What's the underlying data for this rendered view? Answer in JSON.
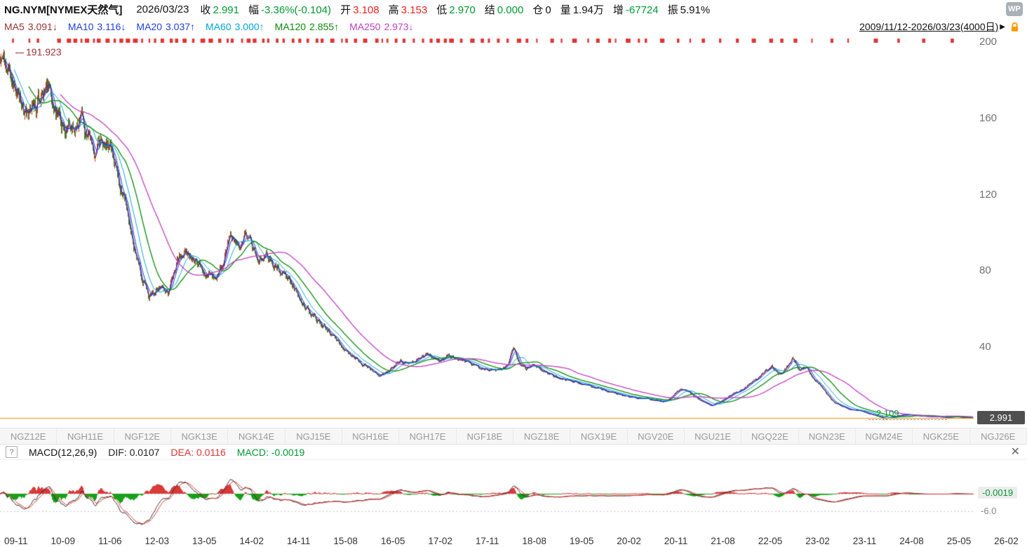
{
  "header": {
    "symbol": "NG.NYM[NYMEX天然气]",
    "date": "2026/03/23",
    "fields": [
      {
        "label": "收",
        "value": "2.991",
        "color": "green"
      },
      {
        "label": "幅",
        "value": "-3.36%(-0.104)",
        "color": "green"
      },
      {
        "label": "开",
        "value": "3.108",
        "color": "red"
      },
      {
        "label": "高",
        "value": "3.153",
        "color": "red"
      },
      {
        "label": "低",
        "value": "2.970",
        "color": "green"
      },
      {
        "label": "结",
        "value": "0.000",
        "color": "green"
      },
      {
        "label": "仓",
        "value": "0",
        "color": "dark"
      },
      {
        "label": "量",
        "value": "1.94万",
        "color": "dark"
      },
      {
        "label": "增",
        "value": "-67724",
        "color": "green"
      },
      {
        "label": "振",
        "value": "5.91%",
        "color": "dark"
      }
    ],
    "logo": "WP"
  },
  "ma_row": {
    "items": [
      {
        "label": "MA5",
        "value": "3.091",
        "arrow": "↓",
        "color": "#993333"
      },
      {
        "label": "MA10",
        "value": "3.116",
        "arrow": "↓",
        "color": "#1f3fd8"
      },
      {
        "label": "MA20",
        "value": "3.037",
        "arrow": "↑",
        "color": "#1f3fd8"
      },
      {
        "label": "MA60",
        "value": "3.000",
        "arrow": "↑",
        "color": "#00a6d6"
      },
      {
        "label": "MA120",
        "value": "2.855",
        "arrow": "↑",
        "color": "#0a8a0a"
      },
      {
        "label": "MA250",
        "value": "2.973",
        "arrow": "↓",
        "color": "#c03fc0"
      }
    ],
    "range": "2009/11/12-2026/03/23(4000日)",
    "arrow": "▶"
  },
  "chart_data": {
    "type": "candlestick",
    "title": "NG.NYM NYMEX天然气 2009/11/12-2026/03/23 (4000日)",
    "y_ticks": [
      200,
      160,
      120,
      80,
      40
    ],
    "y_top": 200,
    "x_ticks": [
      "09-11",
      "10-09",
      "11-06",
      "12-03",
      "13-05",
      "14-02",
      "14-11",
      "15-08",
      "16-05",
      "17-02",
      "17-11",
      "18-08",
      "19-05",
      "20-02",
      "20-11",
      "21-08",
      "22-05",
      "23-02",
      "23-11",
      "24-08",
      "25-05",
      "26-02"
    ],
    "contracts": [
      "NGZ12E",
      "NGH11E",
      "NGF12E",
      "NGK13E",
      "NGK14E",
      "NGJ15E",
      "NGH16E",
      "NGH17E",
      "NGF18E",
      "NGZ18E",
      "NGX19E",
      "NGV20E",
      "NGU21E",
      "NGQ22E",
      "NGN23E",
      "NGM24E",
      "NGK25E",
      "NGJ26E"
    ],
    "high_label": "191.923",
    "low_label": "2.109",
    "low_value": 2.109,
    "low_pos": 0.908,
    "last_price": "2.991",
    "last_value": 2.991,
    "anchors": [
      [
        0.0,
        192
      ],
      [
        0.006,
        188
      ],
      [
        0.013,
        178
      ],
      [
        0.022,
        169
      ],
      [
        0.03,
        163
      ],
      [
        0.04,
        172
      ],
      [
        0.047,
        177
      ],
      [
        0.056,
        168
      ],
      [
        0.065,
        157
      ],
      [
        0.074,
        153
      ],
      [
        0.082,
        161
      ],
      [
        0.09,
        149
      ],
      [
        0.097,
        136
      ],
      [
        0.104,
        151
      ],
      [
        0.114,
        142
      ],
      [
        0.122,
        127
      ],
      [
        0.13,
        113
      ],
      [
        0.137,
        93
      ],
      [
        0.145,
        79
      ],
      [
        0.153,
        67
      ],
      [
        0.163,
        72
      ],
      [
        0.173,
        68
      ],
      [
        0.183,
        87
      ],
      [
        0.19,
        93
      ],
      [
        0.199,
        84
      ],
      [
        0.209,
        80
      ],
      [
        0.22,
        77
      ],
      [
        0.229,
        84
      ],
      [
        0.237,
        99
      ],
      [
        0.245,
        91
      ],
      [
        0.253,
        97
      ],
      [
        0.262,
        89
      ],
      [
        0.274,
        86
      ],
      [
        0.285,
        82
      ],
      [
        0.295,
        75
      ],
      [
        0.306,
        67
      ],
      [
        0.315,
        60
      ],
      [
        0.326,
        54
      ],
      [
        0.336,
        49
      ],
      [
        0.346,
        43
      ],
      [
        0.357,
        36
      ],
      [
        0.367,
        33
      ],
      [
        0.378,
        29.5
      ],
      [
        0.389,
        24.5
      ],
      [
        0.4,
        28
      ],
      [
        0.411,
        34
      ],
      [
        0.421,
        31
      ],
      [
        0.43,
        34
      ],
      [
        0.441,
        36.5
      ],
      [
        0.451,
        34
      ],
      [
        0.462,
        35.5
      ],
      [
        0.478,
        32
      ],
      [
        0.49,
        30
      ],
      [
        0.504,
        28.5
      ],
      [
        0.515,
        27.5
      ],
      [
        0.522,
        31
      ],
      [
        0.527,
        41
      ],
      [
        0.532,
        33
      ],
      [
        0.54,
        29
      ],
      [
        0.548,
        31
      ],
      [
        0.558,
        27
      ],
      [
        0.569,
        25
      ],
      [
        0.584,
        23
      ],
      [
        0.598,
        21
      ],
      [
        0.612,
        18.5
      ],
      [
        0.627,
        16.5
      ],
      [
        0.641,
        15
      ],
      [
        0.656,
        13.5
      ],
      [
        0.67,
        12.5
      ],
      [
        0.684,
        11.5
      ],
      [
        0.694,
        16
      ],
      [
        0.702,
        18.5
      ],
      [
        0.712,
        15
      ],
      [
        0.722,
        11.5
      ],
      [
        0.731,
        9.5
      ],
      [
        0.742,
        12
      ],
      [
        0.753,
        15.5
      ],
      [
        0.764,
        18
      ],
      [
        0.774,
        22
      ],
      [
        0.784,
        26
      ],
      [
        0.793,
        31
      ],
      [
        0.8,
        26
      ],
      [
        0.807,
        29
      ],
      [
        0.814,
        34
      ],
      [
        0.821,
        28
      ],
      [
        0.829,
        30
      ],
      [
        0.836,
        24
      ],
      [
        0.847,
        17
      ],
      [
        0.857,
        11
      ],
      [
        0.872,
        7.5
      ],
      [
        0.886,
        6.2
      ],
      [
        0.895,
        5.0
      ],
      [
        0.903,
        3.6
      ],
      [
        0.91,
        2.5
      ],
      [
        0.918,
        3.7
      ],
      [
        0.93,
        4.7
      ],
      [
        0.945,
        4.1
      ],
      [
        0.958,
        3.7
      ],
      [
        0.972,
        3.3
      ],
      [
        0.985,
        3.5
      ],
      [
        0.995,
        3.05
      ],
      [
        1.0,
        2.991
      ]
    ],
    "ma_windows_days": [
      5,
      10,
      20,
      60,
      120,
      250
    ],
    "colors": {
      "up": "#c9302c",
      "down": "#1f8f1f",
      "ma5": "#993333",
      "ma10": "#1f3fd8",
      "ma20": "#2a32c8",
      "ma60": "#00a6d6",
      "ma120": "#0a8a0a",
      "ma250": "#c03fc0",
      "last_price_line": "#ff8a00",
      "top_marks": "#e23333"
    }
  },
  "macd": {
    "help": "?",
    "title": "MACD(12,26,9)",
    "dif_label": "DIF: 0.0107",
    "dea_label": "DEA: 0.0116",
    "macd_label": "MACD: -0.0019",
    "close": "✕",
    "value_badge": "-0.0019",
    "scale_label": "-6.0",
    "colors": {
      "dif": "#333333",
      "dea": "#e03333",
      "pos": "#d93a3a",
      "neg": "#18a018"
    }
  }
}
